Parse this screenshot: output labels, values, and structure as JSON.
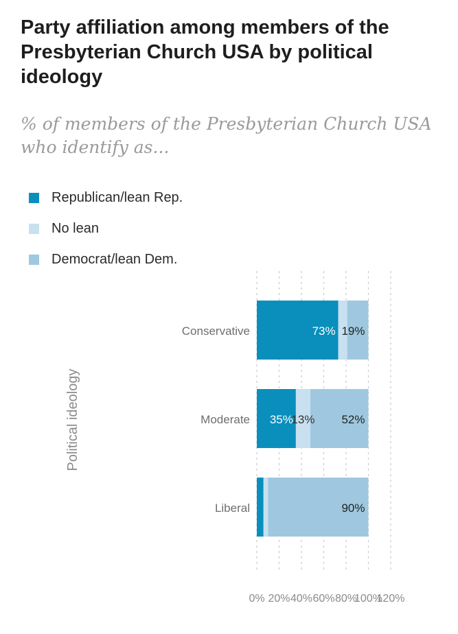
{
  "title": "Party affiliation among members of the Presbyterian Church USA by political ideology",
  "subtitle": "% of members of the Presbyterian Church USA who identify as...",
  "legend": [
    {
      "label": "Republican/lean Rep.",
      "color": "#0a8fbc"
    },
    {
      "label": "No lean",
      "color": "#c8e0ef"
    },
    {
      "label": "Democrat/lean Dem.",
      "color": "#9fc8e0"
    }
  ],
  "colors": {
    "republican": "#0a8fbc",
    "no_lean": "#c8e0ef",
    "democrat": "#9fc8e0",
    "grid": "#c9c9c9",
    "axis_text": "#8a8a8a",
    "category_text": "#6e6e6e"
  },
  "chart_data": {
    "type": "bar",
    "orientation": "horizontal",
    "stacked": true,
    "title": "Party affiliation among members of the Presbyterian Church USA by political ideology",
    "ylabel": "Political ideology",
    "xlabel": "",
    "categories": [
      "Conservative",
      "Moderate",
      "Liberal"
    ],
    "series": [
      {
        "name": "Republican/lean Rep.",
        "values": [
          73,
          35,
          6
        ],
        "labels": [
          "73%",
          "35%",
          ""
        ]
      },
      {
        "name": "No lean",
        "values": [
          8,
          13,
          4
        ],
        "labels": [
          "",
          "13%",
          ""
        ]
      },
      {
        "name": "Democrat/lean Dem.",
        "values": [
          19,
          52,
          90
        ],
        "labels": [
          "19%",
          "52%",
          "90%"
        ]
      }
    ],
    "xlim": [
      0,
      120
    ],
    "xticks": [
      0,
      20,
      40,
      60,
      80,
      100,
      120
    ],
    "xtick_labels": [
      "0%",
      "20%",
      "40%",
      "60%",
      "80%",
      "100%",
      "120%"
    ],
    "grid": true,
    "grid_style": "dotted vertical"
  }
}
